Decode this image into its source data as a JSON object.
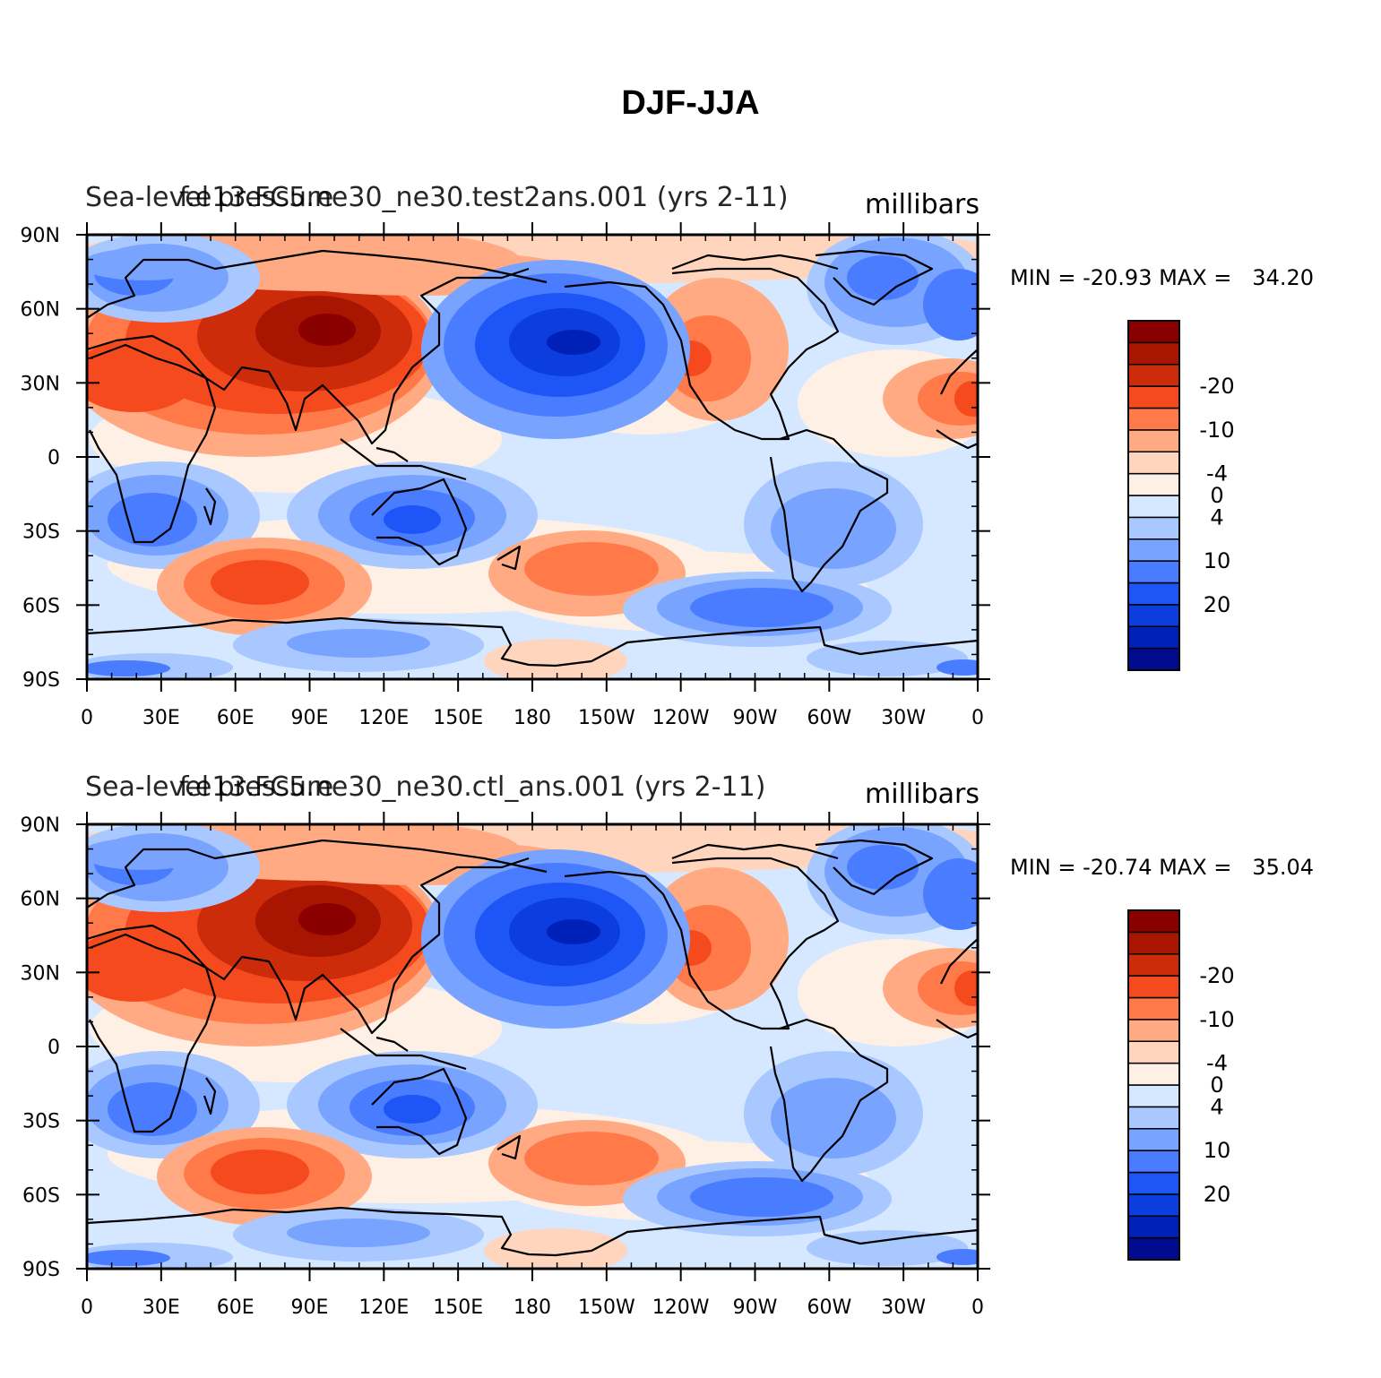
{
  "title": "DJF-JJA",
  "panels": [
    {
      "left_title": "Sea-level pressure",
      "center_title": "f.e13.FC5.ne30_ne30.test2ans.001 (yrs 2-11)",
      "right_title": "millibars",
      "stats": "MIN = -20.93 MAX =   34.20"
    },
    {
      "left_title": "Sea-level pressure",
      "center_title": "f.e13.FC5.ne30_ne30.ctl_ans.001 (yrs 2-11)",
      "right_title": "millibars",
      "stats": "MIN = -20.74 MAX =   35.04"
    }
  ],
  "lat_ticks": [
    "90N",
    "60N",
    "30N",
    "0",
    "30S",
    "60S",
    "90S"
  ],
  "lon_ticks": [
    "0",
    "30E",
    "60E",
    "90E",
    "120E",
    "150E",
    "180",
    "150W",
    "120W",
    "90W",
    "60W",
    "30W",
    "0"
  ],
  "colorbar": {
    "colors": [
      "#000b8e",
      "#0021b8",
      "#0c3ddf",
      "#1e55f7",
      "#4a7cff",
      "#78a4ff",
      "#a8c8ff",
      "#d6e8ff",
      "#fff0e6",
      "#ffd5bd",
      "#ffaa82",
      "#ff7a48",
      "#f44a1e",
      "#cc2c0a",
      "#a81500",
      "#8a0000"
    ],
    "labels": [
      "-20",
      "-10",
      "-4",
      "0",
      "4",
      "10",
      "20"
    ]
  }
}
